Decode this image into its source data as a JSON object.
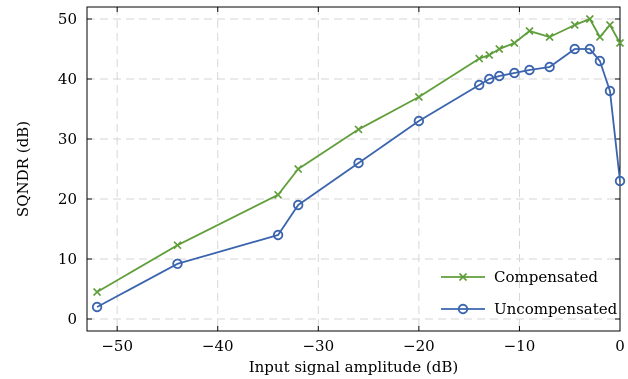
{
  "chart_data": {
    "type": "line",
    "xlabel": "Input signal amplitude (dB)",
    "ylabel": "SQNDR (dB)",
    "xlim": [
      -53,
      0
    ],
    "ylim": [
      -2,
      52
    ],
    "xticks": [
      -50,
      -40,
      -30,
      -20,
      -10,
      0
    ],
    "xtick_labels": [
      "−50",
      "−40",
      "−30",
      "−20",
      "−10",
      "0"
    ],
    "yticks": [
      0,
      10,
      20,
      30,
      40,
      50
    ],
    "ytick_labels": [
      "0",
      "10",
      "20",
      "30",
      "40",
      "50"
    ],
    "grid": true,
    "legend_position": "bottom-right",
    "series": [
      {
        "name": "Compensated",
        "color": "#5f9e3a",
        "marker": "x",
        "x": [
          -52,
          -44,
          -34,
          -32,
          -26,
          -20,
          -14,
          -13,
          -12,
          -10.5,
          -9,
          -7,
          -4.5,
          -3,
          -2,
          -1,
          0
        ],
        "y": [
          4.5,
          12.3,
          20.7,
          25,
          31.6,
          37,
          43.4,
          44,
          45,
          46,
          48,
          47,
          49,
          50,
          47,
          49,
          46
        ]
      },
      {
        "name": "Uncompensated",
        "color": "#3a64ad",
        "marker": "o",
        "x": [
          -52,
          -44,
          -34,
          -32,
          -26,
          -20,
          -14,
          -13,
          -12,
          -10.5,
          -9,
          -7,
          -4.5,
          -3,
          -2,
          -1,
          0
        ],
        "y": [
          2,
          9.2,
          14,
          19,
          26,
          33,
          39,
          40,
          40.5,
          41,
          41.5,
          42,
          45,
          45,
          43,
          38,
          23
        ]
      }
    ]
  }
}
